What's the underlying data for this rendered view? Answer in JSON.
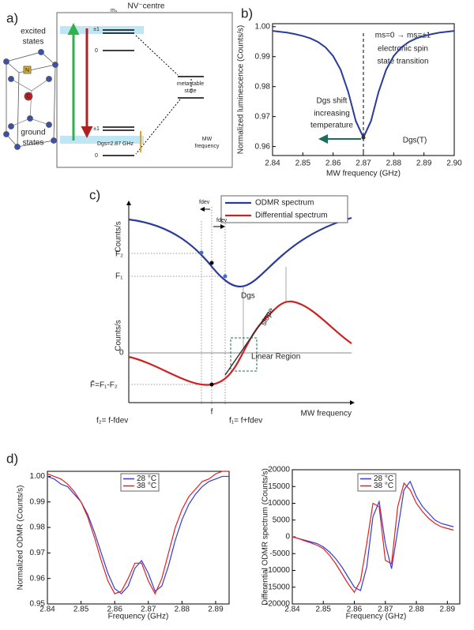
{
  "diagram_a": {
    "label": "a)",
    "title": "NV⁻centre",
    "ms": "mₛ",
    "excited": [
      "excited",
      "states"
    ],
    "ground": [
      "ground",
      "states"
    ],
    "levels": [
      "±1",
      "0",
      "±1",
      "0"
    ],
    "metastable": [
      "metastable",
      "state"
    ],
    "dgs": "Dgs=2.87 GHz",
    "mw": [
      "MW",
      "frequency"
    ],
    "atoms": [
      "N",
      "C"
    ]
  },
  "diagram_c": {
    "label": "c)",
    "legend": [
      "ODMR spectrum",
      "Differential spectrum"
    ],
    "ylabels": [
      "Counts/s",
      "Counts/s"
    ],
    "f2": "F₂",
    "f1": "F₁",
    "zero": "0",
    "ftilde": "F̃=F₁-F₂",
    "dgs": "Dgs",
    "slope": "slope",
    "linear": "Linear Region",
    "fdev": [
      "fdev",
      "fdev"
    ],
    "fticks": [
      "f₂= f-fdev",
      "f",
      "f₁= f+fdev"
    ],
    "xlabel": "MW frequency"
  },
  "chart_data": [
    {
      "type": "line",
      "label": "b)",
      "xlabel": "MW frequency (GHz)",
      "ylabel": "Normalized luminescence (Counts/s)",
      "annotations": [
        "ms=0 → ms=±1",
        "electronic spin",
        "state transition",
        "Dgs shift",
        "increasing",
        "temperature",
        "Dgs(T)"
      ],
      "x": [
        2.84,
        2.8425,
        2.845,
        2.8475,
        2.85,
        2.8525,
        2.855,
        2.8575,
        2.86,
        2.8625,
        2.865,
        2.8675,
        2.87,
        2.8725,
        2.875,
        2.8775,
        2.88,
        2.8825,
        2.885,
        2.8875,
        2.89,
        2.8925,
        2.895,
        2.8975,
        2.9
      ],
      "series": [
        {
          "color": "#2a3c9a",
          "values": [
            0.9986,
            0.9983,
            0.998,
            0.9975,
            0.9969,
            0.9961,
            0.9949,
            0.9931,
            0.9902,
            0.9856,
            0.9782,
            0.9685,
            0.963,
            0.9685,
            0.9782,
            0.9856,
            0.9902,
            0.9931,
            0.9949,
            0.9961,
            0.9969,
            0.9975,
            0.998,
            0.9983,
            0.9986
          ]
        }
      ],
      "xlim": [
        2.84,
        2.9
      ],
      "ylim": [
        0.957,
        1.001
      ],
      "xticks": [
        2.84,
        2.85,
        2.86,
        2.87,
        2.88,
        2.89,
        {
          "value": 2.9,
          "label": "2.90"
        }
      ],
      "yticks": [
        0.96,
        0.97,
        0.98,
        0.99,
        {
          "value": 1,
          "label": "1.00"
        }
      ]
    },
    {
      "type": "line",
      "label": "d)",
      "xlabel": "Frequency (GHz)",
      "ylabel": "Normalized ODMR (Counts/s)",
      "x": [
        2.84,
        2.842,
        2.844,
        2.846,
        2.848,
        2.85,
        2.852,
        2.854,
        2.856,
        2.858,
        2.86,
        2.862,
        2.864,
        2.866,
        2.868,
        2.87,
        2.872,
        2.874,
        2.876,
        2.878,
        2.88,
        2.882,
        2.884,
        2.886,
        2.888,
        2.89,
        2.892,
        2.894
      ],
      "series": [
        {
          "name": "28 °C",
          "color": "#3a3ad0",
          "values": [
            1.0,
            0.999,
            0.997,
            0.996,
            0.993,
            0.99,
            0.985,
            0.978,
            0.97,
            0.962,
            0.956,
            0.954,
            0.957,
            0.964,
            0.967,
            0.962,
            0.955,
            0.957,
            0.965,
            0.975,
            0.983,
            0.989,
            0.993,
            0.996,
            0.998,
            0.999,
            1.0,
            1.0
          ]
        },
        {
          "name": "38 °C",
          "color": "#e02020",
          "values": [
            1.001,
            1.0,
            0.999,
            0.997,
            0.994,
            0.99,
            0.984,
            0.976,
            0.967,
            0.959,
            0.954,
            0.955,
            0.96,
            0.966,
            0.966,
            0.959,
            0.954,
            0.96,
            0.97,
            0.98,
            0.987,
            0.992,
            0.995,
            0.998,
            0.999,
            1.001,
            1.002,
            1.002
          ]
        }
      ],
      "xlim": [
        2.84,
        2.894
      ],
      "ylim": [
        0.95,
        1.002
      ],
      "xticks": [
        2.84,
        2.85,
        2.86,
        2.87,
        2.88,
        2.89
      ],
      "yticks": [
        0.95,
        0.96,
        0.97,
        0.98,
        0.99,
        {
          "value": 1,
          "label": "1.00"
        }
      ]
    },
    {
      "type": "line",
      "xlabel": "Frequency (GHz)",
      "ylabel": "Differential ODMR spectrum (Counts/s)",
      "x": [
        2.84,
        2.842,
        2.844,
        2.846,
        2.848,
        2.85,
        2.852,
        2.854,
        2.856,
        2.858,
        2.86,
        2.862,
        2.864,
        2.866,
        2.868,
        2.87,
        2.872,
        2.874,
        2.876,
        2.878,
        2.88,
        2.882,
        2.884,
        2.886,
        2.888,
        2.89,
        2.892
      ],
      "series": [
        {
          "name": "28 °C",
          "color": "#3a3ad0",
          "values": [
            0,
            -500,
            -1000,
            -1500,
            -2000,
            -3000,
            -4500,
            -6500,
            -9000,
            -12000,
            -15000,
            -16000,
            -9000,
            6000,
            10500,
            -2000,
            -9500,
            2000,
            14000,
            16500,
            12000,
            9000,
            7000,
            5000,
            4000,
            3500,
            3000
          ]
        },
        {
          "name": "38 °C",
          "color": "#e02020",
          "values": [
            0,
            -500,
            -1200,
            -1800,
            -2500,
            -3500,
            -5500,
            -8000,
            -11000,
            -14000,
            -16500,
            -13000,
            -2000,
            10000,
            9000,
            -7000,
            -8000,
            9000,
            16000,
            14000,
            10000,
            7500,
            5500,
            4000,
            3000,
            2500,
            2000
          ]
        }
      ],
      "xlim": [
        2.84,
        2.894
      ],
      "ylim": [
        -20000,
        20000
      ],
      "xticks": [
        2.84,
        2.85,
        2.86,
        2.87,
        2.88,
        2.89
      ],
      "yticks": [
        -20000,
        -15000,
        -10000,
        -5000,
        0,
        5000,
        10000,
        15000,
        20000
      ]
    }
  ]
}
